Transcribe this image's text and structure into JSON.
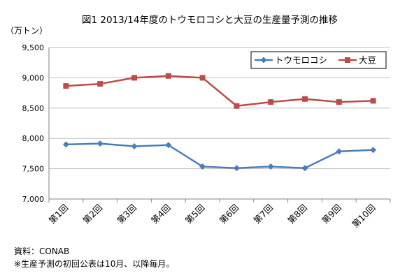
{
  "chart_data": {
    "type": "line",
    "title": "図1 2013/14年度のトウモロコシと大豆の生産量予測の推移",
    "ylabel": "（万トン）",
    "categories": [
      "第1回",
      "第2回",
      "第3回",
      "第4回",
      "第5回",
      "第6回",
      "第7回",
      "第8回",
      "第9回",
      "第10回"
    ],
    "ylim": [
      7000,
      9500
    ],
    "yticks": [
      "9,500",
      "9,000",
      "8,500",
      "8,000",
      "7,500",
      "7,000"
    ],
    "ytick_values": [
      9500,
      9000,
      8500,
      8000,
      7500,
      7000
    ],
    "grid": true,
    "legend_position": "top-right",
    "series": [
      {
        "name": "トウモロコシ",
        "color": "#4A7EBB",
        "marker": "diamond",
        "values": [
          7900,
          7915,
          7870,
          7890,
          7535,
          7510,
          7535,
          7510,
          7785,
          7810
        ]
      },
      {
        "name": "大豆",
        "color": "#BE4B48",
        "marker": "square",
        "values": [
          8865,
          8900,
          9000,
          9030,
          9000,
          8535,
          8600,
          8650,
          8600,
          8620
        ]
      }
    ]
  },
  "footnotes": {
    "source": "資料：CONAB",
    "note": "※生産予測の初回公表は10月、以降毎月。"
  }
}
